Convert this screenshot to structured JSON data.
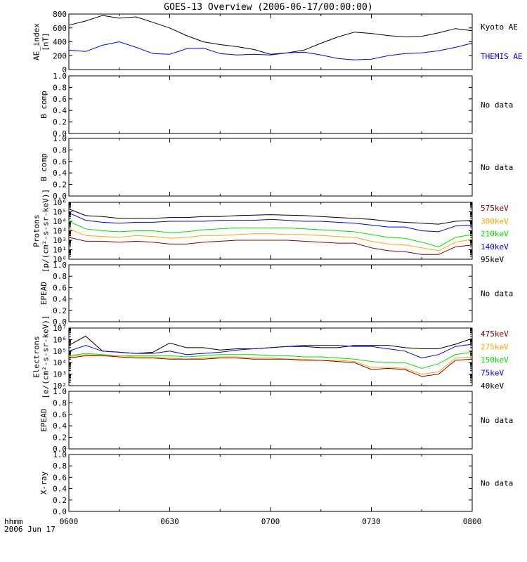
{
  "title": "GOES-13 Overview (2006-06-17/00:00:00)",
  "time_label": "hhmm",
  "date_label": "2006 Jun 17",
  "x_ticks": [
    "0600",
    "0630",
    "0700",
    "0730",
    "0800"
  ],
  "colors": {
    "black": "#000000",
    "blue": "#0000ff",
    "green": "#00e000",
    "orange": "#ffa500",
    "darkred": "#8b0000"
  },
  "panels": [
    {
      "id": "ae",
      "ylabel": [
        "AE_index",
        "[nT]"
      ],
      "ytick_labels": [
        "0",
        "200",
        "400",
        "600",
        "800"
      ],
      "yrange": [
        0,
        800
      ],
      "log": false,
      "legend": [
        {
          "text": "Kyoto AE",
          "color": "#000000"
        },
        {
          "text": "THEMIS AE",
          "color": "#0000ff"
        }
      ]
    },
    {
      "id": "bcomp1",
      "ylabel": [
        "B comp"
      ],
      "ytick_labels": [
        "0.0",
        "0.2",
        "0.4",
        "0.6",
        "0.8",
        "1.0"
      ],
      "yrange": [
        0,
        1
      ],
      "log": false,
      "nodata": "No data"
    },
    {
      "id": "bcomp2",
      "ylabel": [
        "B comp"
      ],
      "ytick_labels": [
        "0.0",
        "0.2",
        "0.4",
        "0.6",
        "0.8",
        "1.0"
      ],
      "yrange": [
        0,
        1
      ],
      "log": false,
      "nodata": "No data"
    },
    {
      "id": "protons",
      "ylabel": [
        "Protons",
        "[p/(cm²-s-sr-keV)]"
      ],
      "ytick_labels": [
        "10⁰",
        "10¹",
        "10²",
        "10³",
        "10⁴",
        "10⁵",
        "10⁶"
      ],
      "yrange": [
        0,
        6
      ],
      "log": true,
      "legend": [
        {
          "text": "575keV",
          "color": "#8b0000"
        },
        {
          "text": "300keV",
          "color": "#ffa500"
        },
        {
          "text": "210keV",
          "color": "#00e000"
        },
        {
          "text": "140keV",
          "color": "#0000ff"
        },
        {
          "text": "95keV",
          "color": "#000000"
        }
      ]
    },
    {
      "id": "epead1",
      "ylabel": [
        "EPEAD"
      ],
      "ytick_labels": [
        "0.0",
        "0.2",
        "0.4",
        "0.6",
        "0.8",
        "1.0"
      ],
      "yrange": [
        0,
        1
      ],
      "log": false,
      "nodata": "No data"
    },
    {
      "id": "electrons",
      "ylabel": [
        "Electrons",
        "[e/(cm²-s-sr-keV)]"
      ],
      "ytick_labels": [
        "10²",
        "10³",
        "10⁴",
        "10⁵",
        "10⁶",
        "10⁷"
      ],
      "yrange": [
        2,
        7
      ],
      "log": true,
      "legend": [
        {
          "text": "475keV",
          "color": "#8b0000"
        },
        {
          "text": "275keV",
          "color": "#ffa500"
        },
        {
          "text": "150keV",
          "color": "#00e000"
        },
        {
          "text": "75keV",
          "color": "#0000ff"
        },
        {
          "text": "40keV",
          "color": "#000000"
        }
      ]
    },
    {
      "id": "epead2",
      "ylabel": [
        "EPEAD"
      ],
      "ytick_labels": [
        "0.0",
        "0.2",
        "0.4",
        "0.6",
        "0.8",
        "1.0"
      ],
      "yrange": [
        0,
        1
      ],
      "log": false,
      "nodata": "No data"
    },
    {
      "id": "xray",
      "ylabel": [
        "X-ray"
      ],
      "ytick_labels": [
        "0.0",
        "0.2",
        "0.4",
        "0.6",
        "0.8",
        "1.0"
      ],
      "yrange": [
        0,
        1
      ],
      "log": false,
      "nodata": "No data"
    }
  ],
  "chart_data": {
    "type": "line",
    "title": "GOES-13 Overview (2006-06-17/00:00:00)",
    "x_unit": "hhmm",
    "xlim": [
      "0600",
      "0800"
    ],
    "x": [
      "0600",
      "0605",
      "0610",
      "0615",
      "0620",
      "0625",
      "0630",
      "0635",
      "0640",
      "0645",
      "0650",
      "0655",
      "0700",
      "0705",
      "0710",
      "0715",
      "0720",
      "0725",
      "0730",
      "0735",
      "0740",
      "0745",
      "0750",
      "0755",
      "0800"
    ],
    "panels": [
      {
        "ylabel": "AE_index [nT]",
        "ylim": [
          0,
          800
        ],
        "series": [
          {
            "name": "Kyoto AE",
            "color": "#000000",
            "values": [
              640,
              700,
              780,
              740,
              760,
              680,
              600,
              490,
              400,
              360,
              330,
              290,
              220,
              240,
              280,
              380,
              470,
              540,
              520,
              490,
              470,
              480,
              530,
              590,
              560
            ]
          },
          {
            "name": "THEMIS AE",
            "color": "#0000ff",
            "values": [
              280,
              260,
              350,
              400,
              320,
              230,
              220,
              300,
              310,
              230,
              210,
              220,
              210,
              240,
              250,
              210,
              160,
              140,
              150,
              200,
              230,
              240,
              270,
              320,
              380
            ]
          }
        ]
      },
      {
        "ylabel": "B comp",
        "ylim": [
          0,
          1
        ],
        "series": []
      },
      {
        "ylabel": "B comp",
        "ylim": [
          0,
          1
        ],
        "series": []
      },
      {
        "ylabel": "Protons [p/(cm²-s-sr-keV)]",
        "scale": "log",
        "ylim_exponent": [
          0,
          6
        ],
        "series": [
          {
            "name": "95keV",
            "color": "#000000",
            "log10_values": [
              5.3,
              4.6,
              4.5,
              4.3,
              4.3,
              4.3,
              4.4,
              4.4,
              4.5,
              4.5,
              4.6,
              4.65,
              4.7,
              4.65,
              4.6,
              4.5,
              4.4,
              4.3,
              4.2,
              4.0,
              3.9,
              3.8,
              3.7,
              4.0,
              4.1
            ]
          },
          {
            "name": "140keV",
            "color": "#0000ff",
            "log10_values": [
              4.9,
              4.1,
              3.9,
              3.8,
              3.9,
              3.9,
              4.0,
              4.0,
              4.0,
              4.1,
              4.1,
              4.1,
              4.2,
              4.1,
              4.0,
              4.0,
              3.9,
              3.8,
              3.6,
              3.4,
              3.4,
              3.0,
              2.9,
              3.5,
              3.6
            ]
          },
          {
            "name": "210keV",
            "color": "#00e000",
            "log10_values": [
              4.0,
              3.2,
              3.0,
              2.9,
              3.0,
              3.0,
              2.8,
              2.9,
              3.1,
              3.2,
              3.3,
              3.3,
              3.3,
              3.3,
              3.2,
              3.1,
              3.0,
              2.9,
              2.6,
              2.3,
              2.2,
              1.8,
              1.3,
              2.3,
              2.6
            ]
          },
          {
            "name": "300keV",
            "color": "#ffa500",
            "log10_values": [
              3.2,
              2.5,
              2.4,
              2.3,
              2.5,
              2.4,
              2.2,
              2.3,
              2.5,
              2.5,
              2.6,
              2.7,
              2.7,
              2.6,
              2.6,
              2.5,
              2.4,
              2.3,
              1.9,
              1.6,
              1.5,
              1.2,
              0.9,
              1.8,
              2.1
            ]
          },
          {
            "name": "575keV",
            "color": "#8b0000",
            "log10_values": [
              2.3,
              1.9,
              1.9,
              1.8,
              1.9,
              1.8,
              1.6,
              1.6,
              1.8,
              1.9,
              2.0,
              2.0,
              2.0,
              2.0,
              1.9,
              1.8,
              1.7,
              1.7,
              1.2,
              0.9,
              0.8,
              0.5,
              0.5,
              1.3,
              1.5
            ]
          }
        ]
      },
      {
        "ylabel": "EPEAD",
        "ylim": [
          0,
          1
        ],
        "series": []
      },
      {
        "ylabel": "Electrons [e/(cm²-s-sr-keV)]",
        "scale": "log",
        "ylim_exponent": [
          2,
          7
        ],
        "series": [
          {
            "name": "40keV",
            "color": "#000000",
            "log10_values": [
              5.5,
              6.3,
              5.0,
              4.9,
              4.8,
              4.9,
              5.7,
              5.3,
              5.3,
              5.1,
              5.2,
              5.2,
              5.3,
              5.4,
              5.4,
              5.3,
              5.3,
              5.5,
              5.5,
              5.5,
              5.3,
              5.2,
              5.2,
              5.6,
              6.1
            ]
          },
          {
            "name": "75keV",
            "color": "#0000ff",
            "log10_values": [
              5.0,
              5.5,
              5.0,
              4.9,
              4.8,
              4.8,
              5.0,
              4.7,
              4.8,
              4.9,
              5.1,
              5.2,
              5.3,
              5.4,
              5.5,
              5.5,
              5.5,
              5.4,
              5.4,
              5.2,
              5.0,
              4.4,
              4.7,
              5.4,
              5.6
            ]
          },
          {
            "name": "150keV",
            "color": "#00e000",
            "log10_values": [
              4.6,
              4.8,
              4.7,
              4.6,
              4.6,
              4.6,
              4.6,
              4.5,
              4.6,
              4.7,
              4.7,
              4.7,
              4.6,
              4.6,
              4.5,
              4.5,
              4.4,
              4.3,
              4.1,
              4.0,
              4.0,
              3.5,
              3.9,
              4.7,
              4.9
            ]
          },
          {
            "name": "275keV",
            "color": "#ffa500",
            "log10_values": [
              4.5,
              4.7,
              4.6,
              4.6,
              4.5,
              4.5,
              4.4,
              4.3,
              4.4,
              4.5,
              4.5,
              4.4,
              4.4,
              4.3,
              4.3,
              4.2,
              4.2,
              4.1,
              3.6,
              3.6,
              3.5,
              3.0,
              3.2,
              4.4,
              4.5
            ]
          },
          {
            "name": "475keV",
            "color": "#8b0000",
            "log10_values": [
              4.4,
              4.6,
              4.6,
              4.5,
              4.4,
              4.4,
              4.3,
              4.3,
              4.3,
              4.4,
              4.4,
              4.3,
              4.3,
              4.3,
              4.2,
              4.2,
              4.1,
              4.0,
              3.4,
              3.5,
              3.4,
              2.8,
              3.0,
              4.2,
              4.3
            ]
          }
        ]
      },
      {
        "ylabel": "EPEAD",
        "ylim": [
          0,
          1
        ],
        "series": []
      },
      {
        "ylabel": "X-ray",
        "ylim": [
          0,
          1
        ],
        "series": []
      }
    ]
  }
}
